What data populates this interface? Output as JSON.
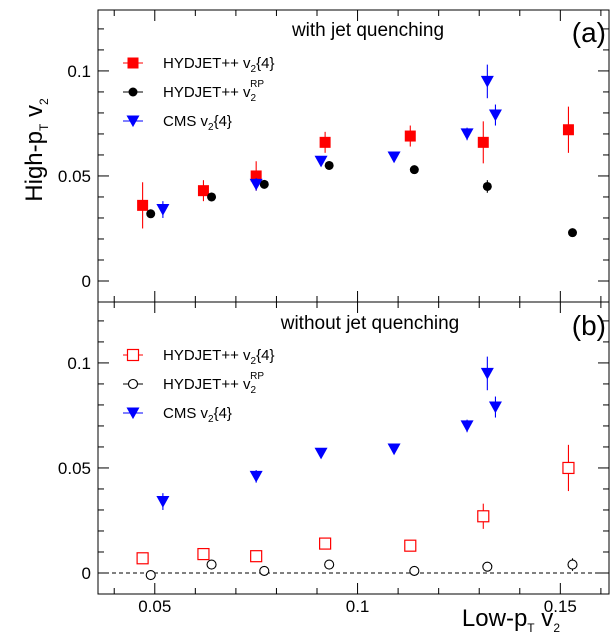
{
  "chart_data": [
    {
      "panel": "(a)",
      "type": "scatter",
      "title": "with jet quenching",
      "xlim": [
        0.036,
        0.162
      ],
      "ylim": [
        -0.01,
        0.129
      ],
      "xticks": [
        0.05,
        0.1,
        0.15
      ],
      "xtick_labels": [
        "0.05",
        "0.1",
        "0.15"
      ],
      "yticks": [
        0,
        0.05,
        0.1
      ],
      "ytick_labels": [
        "0",
        "0.05",
        "0.1"
      ],
      "legend_position": "top-left",
      "series": [
        {
          "name": "HYDJET++ v2{4}",
          "legend_main": "HYDJET++ v",
          "legend_sub": "2",
          "legend_tail": "{4}",
          "marker": "square-filled",
          "color": "#ff0000",
          "points": [
            {
              "x": 0.047,
              "y": 0.036,
              "err": 0.011
            },
            {
              "x": 0.062,
              "y": 0.043,
              "err": 0.005
            },
            {
              "x": 0.075,
              "y": 0.05,
              "err": 0.007
            },
            {
              "x": 0.092,
              "y": 0.066,
              "err": 0.005
            },
            {
              "x": 0.113,
              "y": 0.069,
              "err": 0.005
            },
            {
              "x": 0.131,
              "y": 0.066,
              "err": 0.01
            },
            {
              "x": 0.152,
              "y": 0.072,
              "err": 0.011
            }
          ]
        },
        {
          "name": "HYDJET++ v2RP",
          "legend_main": "HYDJET++ v",
          "legend_sub": "2",
          "legend_sup": "RP",
          "marker": "circle-filled",
          "color": "#000000",
          "points": [
            {
              "x": 0.049,
              "y": 0.032,
              "err": 0.002
            },
            {
              "x": 0.064,
              "y": 0.04,
              "err": 0.002
            },
            {
              "x": 0.077,
              "y": 0.046,
              "err": 0.002
            },
            {
              "x": 0.093,
              "y": 0.055,
              "err": 0.002
            },
            {
              "x": 0.114,
              "y": 0.053,
              "err": 0.002
            },
            {
              "x": 0.132,
              "y": 0.045,
              "err": 0.003
            },
            {
              "x": 0.153,
              "y": 0.023,
              "err": 0.001
            }
          ]
        },
        {
          "name": "CMS v2{4}",
          "legend_main": "CMS v",
          "legend_sub": "2",
          "legend_tail": "{4}",
          "marker": "triangle-down-filled",
          "color": "#0000ff",
          "points": [
            {
              "x": 0.052,
              "y": 0.034,
              "err": 0.004
            },
            {
              "x": 0.075,
              "y": 0.046,
              "err": 0.003
            },
            {
              "x": 0.091,
              "y": 0.057,
              "err": 0.002
            },
            {
              "x": 0.109,
              "y": 0.059,
              "err": 0.002
            },
            {
              "x": 0.127,
              "y": 0.07,
              "err": 0.003
            },
            {
              "x": 0.132,
              "y": 0.095,
              "err": 0.008
            },
            {
              "x": 0.134,
              "y": 0.079,
              "err": 0.005
            }
          ]
        }
      ]
    },
    {
      "panel": "(b)",
      "type": "scatter",
      "title": "without jet quenching",
      "xlim": [
        0.036,
        0.162
      ],
      "ylim": [
        -0.01,
        0.129
      ],
      "xticks": [
        0.05,
        0.1,
        0.15
      ],
      "xtick_labels": [
        "0.05",
        "0.1",
        "0.15"
      ],
      "yticks": [
        0,
        0.05,
        0.1
      ],
      "ytick_labels": [
        "0",
        "0.05",
        "0.1"
      ],
      "legend_position": "top-left",
      "zero_line": true,
      "series": [
        {
          "name": "HYDJET++ v2{4}",
          "legend_main": "HYDJET++ v",
          "legend_sub": "2",
          "legend_tail": "{4}",
          "marker": "square-open",
          "color": "#ff0000",
          "points": [
            {
              "x": 0.047,
              "y": 0.007,
              "err": 0.001
            },
            {
              "x": 0.062,
              "y": 0.009,
              "err": 0.001
            },
            {
              "x": 0.075,
              "y": 0.008,
              "err": 0.001
            },
            {
              "x": 0.092,
              "y": 0.014,
              "err": 0.001
            },
            {
              "x": 0.113,
              "y": 0.013,
              "err": 0.001
            },
            {
              "x": 0.131,
              "y": 0.027,
              "err": 0.006
            },
            {
              "x": 0.152,
              "y": 0.05,
              "err": 0.011
            }
          ]
        },
        {
          "name": "HYDJET++ v2RP",
          "legend_main": "HYDJET++ v",
          "legend_sub": "2",
          "legend_sup": "RP",
          "marker": "circle-open",
          "color": "#000000",
          "points": [
            {
              "x": 0.049,
              "y": -0.001,
              "err": 0.002
            },
            {
              "x": 0.064,
              "y": 0.004,
              "err": 0.002
            },
            {
              "x": 0.077,
              "y": 0.001,
              "err": 0.002
            },
            {
              "x": 0.093,
              "y": 0.004,
              "err": 0.002
            },
            {
              "x": 0.114,
              "y": 0.001,
              "err": 0.002
            },
            {
              "x": 0.132,
              "y": 0.003,
              "err": 0.002
            },
            {
              "x": 0.153,
              "y": 0.004,
              "err": 0.003
            }
          ]
        },
        {
          "name": "CMS v2{4}",
          "legend_main": "CMS v",
          "legend_sub": "2",
          "legend_tail": "{4}",
          "marker": "triangle-down-filled",
          "color": "#0000ff",
          "points": [
            {
              "x": 0.052,
              "y": 0.034,
              "err": 0.004
            },
            {
              "x": 0.075,
              "y": 0.046,
              "err": 0.003
            },
            {
              "x": 0.091,
              "y": 0.057,
              "err": 0.002
            },
            {
              "x": 0.109,
              "y": 0.059,
              "err": 0.002
            },
            {
              "x": 0.127,
              "y": 0.07,
              "err": 0.003
            },
            {
              "x": 0.132,
              "y": 0.095,
              "err": 0.008
            },
            {
              "x": 0.134,
              "y": 0.079,
              "err": 0.005
            }
          ]
        }
      ]
    }
  ],
  "axes": {
    "ylabel_main": "High-p",
    "ylabel_sub": "T",
    "ylabel_tail": " v",
    "ylabel_sub2": "2",
    "xlabel_main": "Low-p",
    "xlabel_sub": "T",
    "xlabel_tail": " v",
    "xlabel_sub2": "2"
  }
}
